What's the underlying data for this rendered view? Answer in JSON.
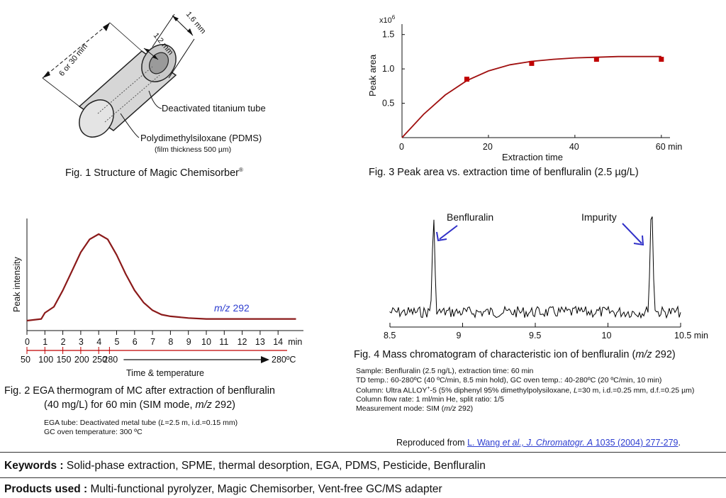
{
  "fig1": {
    "caption": "Fig. 1 Structure of Magic Chemisorber",
    "caption_mark": "®",
    "dim_length": "6 or 30 mm",
    "dim_outer": "1.6 mm",
    "dim_inner": "1.2 mm",
    "label_tube": "Deactivated titanium tube",
    "label_pdms": "Polydimethylsiloxane (PDMS)",
    "label_film": "(film thickness 500 µm)"
  },
  "fig2": {
    "caption_line1": "Fig. 2  EGA thermogram of MC after extraction of benfluralin",
    "caption_line2_a": "(40 mg/L) for 60 min (SIM mode, ",
    "caption_line2_mz": "m/z",
    "caption_line2_b": " 292)",
    "note1_a": "EGA  tube: Deactivated metal tube (",
    "note1_l": "L",
    "note1_b": "=2.5 m, i.d.=0.15 mm)",
    "note2": "GC oven temperature: 300 ºC",
    "ylabel": "Peak intensity",
    "trace_label_mz": "m/z",
    "trace_label_num": " 292",
    "time_unit": "min",
    "xlabel": "Time & temperature",
    "temp_end": "280ºC"
  },
  "fig3": {
    "caption": "Fig. 3 Peak area vs. extraction time of benfluralin (2.5 µg/L)",
    "ylabel": "Peak area",
    "xlabel": "Extraction time",
    "multiplier": "x10",
    "multiplier_exp": "6",
    "x_unit": "min"
  },
  "fig4": {
    "caption_a": "Fig. 4  Mass chromatogram of characteristic ion of benfluralin (",
    "caption_mz": "m/z",
    "caption_b": " 292)",
    "peak1_label": "Benfluralin",
    "peak2_label": "Impurity",
    "x_unit": "min",
    "note_sample": "Sample: Benfluralin (2.5 ng/L), extraction time: 60 min",
    "note_td": "TD temp.: 60-280ºC (40 ºC/min, 8.5 min hold), GC oven temp.: 40-280ºC (20 ºC/min, 10 min)",
    "note_col_a": "Column: Ultra ALLOY",
    "note_col_sup": "+",
    "note_col_b": "-5 (5% diphenyl 95% dimethylpolysiloxane, ",
    "note_col_l": "L",
    "note_col_c": "=30 m, i.d.=0.25 mm, d.f.=0.25 µm)",
    "note_flow": "Column flow rate: 1 ml/min He, split ratio: 1/5",
    "note_mode_a": "Measurement mode: SIM (",
    "note_mode_mz": "m/z",
    "note_mode_b": " 292)"
  },
  "reproduced": {
    "prefix": "Reproduced from ",
    "link_a": "L. Wang ",
    "link_et": "et al., J. Chromatogr. A",
    "link_b": " 1035 (2004) 277-279",
    "suffix": "."
  },
  "keywords": {
    "label": "Keywords :",
    "value": " Solid-phase extraction, SPME, thermal desorption, EGA, PDMS, Pesticide, Benfluralin"
  },
  "products": {
    "label": "Products used :",
    "value": " Multi-functional pyrolyzer, Magic Chemisorber, Vent-free GC/MS adapter"
  },
  "chart_data": [
    {
      "type": "scatter",
      "title": "Fig. 3 Peak area vs. extraction time of benfluralin (2.5 µg/L)",
      "xlabel": "Extraction time",
      "ylabel": "Peak area",
      "x_unit": "min",
      "y_multiplier": "x10^6",
      "xlim": [
        0,
        62
      ],
      "ylim": [
        0,
        1.6
      ],
      "x_ticks": [
        "0",
        "20",
        "40",
        "60 min"
      ],
      "y_ticks": [
        "0.5",
        "1.0",
        "1.5"
      ],
      "series": [
        {
          "type": "scatter",
          "x": [
            15,
            30,
            45,
            60
          ],
          "y": [
            0.85,
            1.08,
            1.14,
            1.14
          ],
          "color": "#c00000"
        },
        {
          "type": "line",
          "x": [
            0,
            5,
            10,
            15,
            20,
            25,
            30,
            35,
            40,
            45,
            50,
            55,
            60
          ],
          "y": [
            0,
            0.34,
            0.62,
            0.83,
            0.97,
            1.06,
            1.11,
            1.14,
            1.16,
            1.17,
            1.18,
            1.18,
            1.18
          ],
          "color": "#a01010"
        }
      ]
    },
    {
      "type": "line",
      "title": "Fig. 2  EGA thermogram of MC after extraction of benfluralin",
      "xlabel": "Time & temperature",
      "ylabel": "Peak intensity",
      "x_ticks": [
        "0",
        "1",
        "2",
        "3",
        "4",
        "5",
        "6",
        "7",
        "8",
        "9",
        "10",
        "11",
        "12",
        "13",
        "14"
      ],
      "temp_ticks": [
        "50",
        "100",
        "150",
        "200",
        "250",
        "280"
      ],
      "xlim": [
        0,
        15
      ],
      "ylim": [
        0,
        1
      ],
      "series": [
        {
          "name": "m/z 292",
          "color": "#8b1a1a",
          "x": [
            0,
            0.8,
            1,
            1.5,
            2,
            2.5,
            3,
            3.5,
            4,
            4.5,
            5,
            5.5,
            6,
            6.5,
            7,
            7.5,
            8,
            9,
            10,
            12,
            15
          ],
          "y": [
            0.0,
            0.02,
            0.09,
            0.16,
            0.35,
            0.57,
            0.79,
            0.94,
            1.0,
            0.94,
            0.76,
            0.54,
            0.35,
            0.21,
            0.12,
            0.07,
            0.05,
            0.03,
            0.02,
            0.02,
            0.02
          ]
        }
      ]
    },
    {
      "type": "line",
      "title": "Fig. 4  Mass chromatogram of characteristic ion of benfluralin (m/z 292)",
      "x_ticks": [
        "8.5",
        "9",
        "9.5",
        "10",
        "10.5 min"
      ],
      "xlim": [
        8.5,
        10.5
      ],
      "series": [
        {
          "name": "m/z 292",
          "color": "#000000"
        }
      ],
      "annotations": [
        {
          "label": "Benfluralin",
          "x": 8.8
        },
        {
          "label": "Impurity",
          "x": 10.3
        }
      ]
    }
  ]
}
